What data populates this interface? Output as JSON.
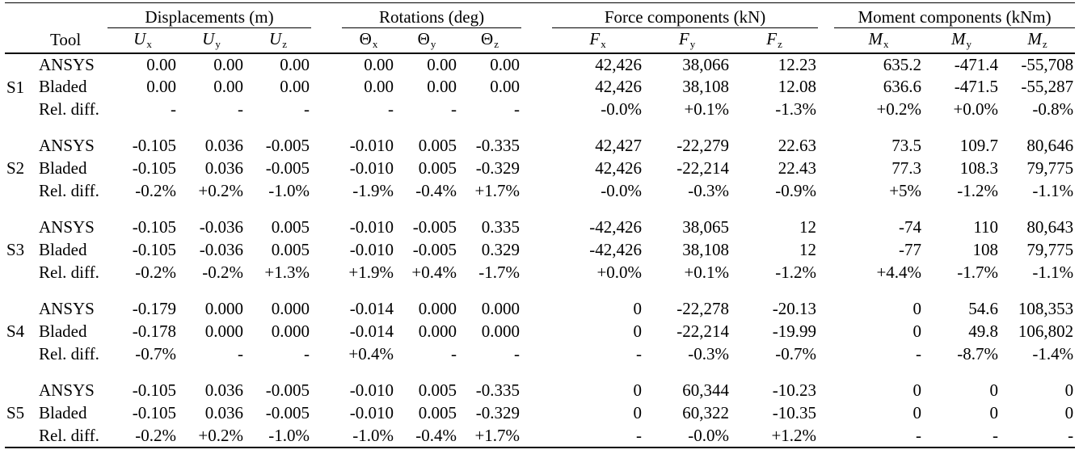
{
  "table": {
    "groups": [
      {
        "label": "Displacements (m)"
      },
      {
        "label": "Rotations (deg)"
      },
      {
        "label": "Force components (kN)"
      },
      {
        "label": "Moment components (kNm)"
      }
    ],
    "tool_header": "Tool",
    "columns": [
      {
        "name": "ux",
        "base": "U",
        "sub": "x",
        "italic": true
      },
      {
        "name": "uy",
        "base": "U",
        "sub": "y",
        "italic": true
      },
      {
        "name": "uz",
        "base": "U",
        "sub": "z",
        "italic": true
      },
      {
        "name": "theta-x",
        "base": "Θ",
        "sub": "x",
        "italic": false
      },
      {
        "name": "theta-y",
        "base": "Θ",
        "sub": "y",
        "italic": false
      },
      {
        "name": "theta-z",
        "base": "Θ",
        "sub": "z",
        "italic": false
      },
      {
        "name": "fx",
        "base": "F",
        "sub": "x",
        "italic": true
      },
      {
        "name": "fy",
        "base": "F",
        "sub": "y",
        "italic": true
      },
      {
        "name": "fz",
        "base": "F",
        "sub": "z",
        "italic": true
      },
      {
        "name": "mx",
        "base": "M",
        "sub": "x",
        "italic": true
      },
      {
        "name": "my",
        "base": "M",
        "sub": "y",
        "italic": true
      },
      {
        "name": "mz",
        "base": "M",
        "sub": "z",
        "italic": true
      }
    ],
    "blocks": [
      {
        "label": "S1",
        "rows": [
          {
            "tool": "ANSYS",
            "values": [
              "0.00",
              "0.00",
              "0.00",
              "0.00",
              "0.00",
              "0.00",
              "42,426",
              "38,066",
              "12.23",
              "635.2",
              "-471.4",
              "-55,708"
            ]
          },
          {
            "tool": "Bladed",
            "values": [
              "0.00",
              "0.00",
              "0.00",
              "0.00",
              "0.00",
              "0.00",
              "42,426",
              "38,108",
              "12.08",
              "636.6",
              "-471.5",
              "-55,287"
            ]
          },
          {
            "tool": "Rel. diff.",
            "values": [
              "-",
              "-",
              "-",
              "-",
              "-",
              "-",
              "-0.0%",
              "+0.1%",
              "-1.3%",
              "+0.2%",
              "+0.0%",
              "-0.8%"
            ]
          }
        ]
      },
      {
        "label": "S2",
        "rows": [
          {
            "tool": "ANSYS",
            "values": [
              "-0.105",
              "0.036",
              "-0.005",
              "-0.010",
              "0.005",
              "-0.335",
              "42,427",
              "-22,279",
              "22.63",
              "73.5",
              "109.7",
              "80,646"
            ]
          },
          {
            "tool": "Bladed",
            "values": [
              "-0.105",
              "0.036",
              "-0.005",
              "-0.010",
              "0.005",
              "-0.329",
              "42,426",
              "-22,214",
              "22.43",
              "77.3",
              "108.3",
              "79,775"
            ]
          },
          {
            "tool": "Rel. diff.",
            "values": [
              "-0.2%",
              "+0.2%",
              "-1.0%",
              "-1.9%",
              "-0.4%",
              "+1.7%",
              "-0.0%",
              "-0.3%",
              "-0.9%",
              "+5%",
              "-1.2%",
              "-1.1%"
            ]
          }
        ]
      },
      {
        "label": "S3",
        "rows": [
          {
            "tool": "ANSYS",
            "values": [
              "-0.105",
              "-0.036",
              "0.005",
              "-0.010",
              "-0.005",
              "0.335",
              "-42,426",
              "38,065",
              "12",
              "-74",
              "110",
              "80,643"
            ]
          },
          {
            "tool": "Bladed",
            "values": [
              "-0.105",
              "-0.036",
              "0.005",
              "-0.010",
              "-0.005",
              "0.329",
              "-42,426",
              "38,108",
              "12",
              "-77",
              "108",
              "79,775"
            ]
          },
          {
            "tool": "Rel. diff.",
            "values": [
              "-0.2%",
              "-0.2%",
              "+1.3%",
              "+1.9%",
              "+0.4%",
              "-1.7%",
              "+0.0%",
              "+0.1%",
              "-1.2%",
              "+4.4%",
              "-1.7%",
              "-1.1%"
            ]
          }
        ]
      },
      {
        "label": "S4",
        "rows": [
          {
            "tool": "ANSYS",
            "values": [
              "-0.179",
              "0.000",
              "0.000",
              "-0.014",
              "0.000",
              "0.000",
              "0",
              "-22,278",
              "-20.13",
              "0",
              "54.6",
              "108,353"
            ]
          },
          {
            "tool": "Bladed",
            "values": [
              "-0.178",
              "0.000",
              "0.000",
              "-0.014",
              "0.000",
              "0.000",
              "0",
              "-22,214",
              "-19.99",
              "0",
              "49.8",
              "106,802"
            ]
          },
          {
            "tool": "Rel. diff.",
            "values": [
              "-0.7%",
              "-",
              "-",
              "+0.4%",
              "-",
              "-",
              "-",
              "-0.3%",
              "-0.7%",
              "-",
              "-8.7%",
              "-1.4%"
            ]
          }
        ]
      },
      {
        "label": "S5",
        "rows": [
          {
            "tool": "ANSYS",
            "values": [
              "-0.105",
              "0.036",
              "-0.005",
              "-0.010",
              "0.005",
              "-0.335",
              "0",
              "60,344",
              "-10.23",
              "0",
              "0",
              "0"
            ]
          },
          {
            "tool": "Bladed",
            "values": [
              "-0.105",
              "0.036",
              "-0.005",
              "-0.010",
              "0.005",
              "-0.329",
              "0",
              "60,322",
              "-10.35",
              "0",
              "0",
              "0"
            ]
          },
          {
            "tool": "Rel. diff.",
            "values": [
              "-0.2%",
              "+0.2%",
              "-1.0%",
              "-1.0%",
              "-0.4%",
              "+1.7%",
              "-",
              "-0.0%",
              "+1.2%",
              "-",
              "-",
              "-"
            ]
          }
        ]
      }
    ]
  }
}
